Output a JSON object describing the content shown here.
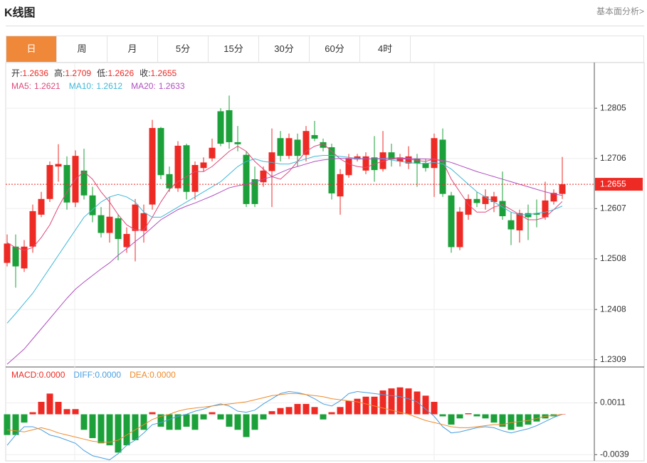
{
  "header": {
    "title": "K线图",
    "link": "基本面分析>"
  },
  "tabs": {
    "items": [
      "日",
      "周",
      "月",
      "5分",
      "15分",
      "30分",
      "60分",
      "4时"
    ],
    "active": 0
  },
  "chart_data": [
    {
      "type": "candlestick",
      "up_color": "#ee2a24",
      "down_color": "#1ba03a",
      "grid": true,
      "last_price_line": true,
      "ohlc_labels": [
        "开:",
        "高:",
        "低:",
        "收:"
      ],
      "open": [
        1.25,
        1.2532,
        1.2489,
        1.2532,
        1.2595,
        1.2626,
        1.269,
        1.2693,
        1.2619,
        1.2682,
        1.2633,
        1.2594,
        1.2559,
        1.2588,
        1.2531,
        1.2563,
        1.2563,
        1.2615,
        1.2766,
        1.2675,
        1.2647,
        1.2732,
        1.264,
        1.2687,
        1.2706,
        1.2799,
        1.2801,
        1.2738,
        1.2713,
        1.2665,
        1.2659,
        1.2681,
        1.2746,
        1.2711,
        1.2743,
        1.2713,
        1.2752,
        1.2738,
        1.2728,
        1.2631,
        1.2673,
        1.2704,
        1.2682,
        1.2708,
        1.2685,
        1.2718,
        1.27,
        1.2696,
        1.2706,
        1.2697,
        1.2687,
        1.2743,
        1.2633,
        1.2531,
        1.2595,
        1.2626,
        1.2616,
        1.262,
        1.2622,
        1.2584,
        1.2564,
        1.2598,
        1.2598,
        1.259,
        1.2621,
        1.2636
      ],
      "high": [
        1.2556,
        1.2556,
        1.2545,
        1.2615,
        1.264,
        1.27,
        1.2734,
        1.271,
        1.2722,
        1.2725,
        1.265,
        1.261,
        1.263,
        1.2596,
        1.257,
        1.2626,
        1.2615,
        1.2782,
        1.2768,
        1.269,
        1.274,
        1.2735,
        1.27,
        1.2708,
        1.2745,
        1.2805,
        1.283,
        1.277,
        1.272,
        1.269,
        1.269,
        1.2765,
        1.276,
        1.2755,
        1.2755,
        1.277,
        1.278,
        1.2745,
        1.2735,
        1.2685,
        1.2715,
        1.2715,
        1.2718,
        1.275,
        1.276,
        1.2735,
        1.2715,
        1.273,
        1.2715,
        1.2705,
        1.2755,
        1.2765,
        1.264,
        1.261,
        1.2635,
        1.264,
        1.2645,
        1.264,
        1.268,
        1.26,
        1.2605,
        1.2615,
        1.2625,
        1.266,
        1.2645,
        1.2709
      ],
      "low": [
        1.2493,
        1.2451,
        1.2482,
        1.252,
        1.259,
        1.262,
        1.266,
        1.2605,
        1.261,
        1.2625,
        1.258,
        1.255,
        1.254,
        1.2505,
        1.252,
        1.2503,
        1.254,
        1.2605,
        1.2665,
        1.264,
        1.264,
        1.2625,
        1.2625,
        1.268,
        1.27,
        1.273,
        1.2725,
        1.272,
        1.261,
        1.261,
        1.265,
        1.261,
        1.27,
        1.2705,
        1.269,
        1.27,
        1.274,
        1.272,
        1.2625,
        1.2595,
        1.2668,
        1.27,
        1.2675,
        1.266,
        1.268,
        1.269,
        1.269,
        1.2685,
        1.265,
        1.268,
        1.263,
        1.263,
        1.252,
        1.2525,
        1.2585,
        1.261,
        1.2605,
        1.26,
        1.2585,
        1.2535,
        1.254,
        1.2545,
        1.257,
        1.2585,
        1.2615,
        1.2626
      ],
      "close": [
        1.2538,
        1.2493,
        1.2532,
        1.2602,
        1.2626,
        1.2693,
        1.2695,
        1.2619,
        1.2711,
        1.2633,
        1.2594,
        1.2559,
        1.2591,
        1.2547,
        1.2557,
        1.2615,
        1.2598,
        1.2766,
        1.2673,
        1.2647,
        1.2731,
        1.264,
        1.2693,
        1.2698,
        1.2727,
        1.2735,
        1.2738,
        1.2734,
        1.2616,
        1.2616,
        1.2682,
        1.2718,
        1.2711,
        1.2746,
        1.2711,
        1.276,
        1.2745,
        1.2727,
        1.2637,
        1.2675,
        1.2706,
        1.271,
        1.271,
        1.2683,
        1.2718,
        1.2704,
        1.2708,
        1.271,
        1.2696,
        1.2687,
        1.2746,
        1.2636,
        1.2531,
        1.2601,
        1.2626,
        1.2618,
        1.2631,
        1.2631,
        1.2592,
        1.2566,
        1.2598,
        1.259,
        1.2595,
        1.2623,
        1.2638,
        1.2655
      ],
      "ma": [
        {
          "name": "MA5:",
          "color": "#e0487a",
          "values": [
            1.254,
            1.253,
            1.2525,
            1.253,
            1.255,
            1.2575,
            1.261,
            1.264,
            1.2665,
            1.268,
            1.2665,
            1.264,
            1.262,
            1.2595,
            1.2575,
            1.2565,
            1.2565,
            1.259,
            1.262,
            1.2645,
            1.266,
            1.267,
            1.268,
            1.268,
            1.269,
            1.2705,
            1.272,
            1.273,
            1.272,
            1.27,
            1.2685,
            1.267,
            1.2665,
            1.268,
            1.27,
            1.272,
            1.273,
            1.2735,
            1.272,
            1.2705,
            1.2695,
            1.269,
            1.2688,
            1.2695,
            1.27,
            1.2705,
            1.2705,
            1.2705,
            1.2702,
            1.27,
            1.2705,
            1.27,
            1.2665,
            1.264,
            1.2615,
            1.26,
            1.26,
            1.261,
            1.2615,
            1.2605,
            1.2595,
            1.2585,
            1.2585,
            1.259,
            1.2605,
            1.2621
          ]
        },
        {
          "name": "MA10:",
          "color": "#3fb8d8",
          "values": [
            1.2381,
            1.24,
            1.242,
            1.244,
            1.2465,
            1.249,
            1.2515,
            1.254,
            1.2565,
            1.259,
            1.2605,
            1.262,
            1.263,
            1.2635,
            1.263,
            1.262,
            1.26,
            1.259,
            1.259,
            1.26,
            1.261,
            1.262,
            1.263,
            1.264,
            1.265,
            1.266,
            1.2675,
            1.269,
            1.27,
            1.2705,
            1.27,
            1.2698,
            1.2695,
            1.2695,
            1.27,
            1.2705,
            1.271,
            1.2712,
            1.2712,
            1.271,
            1.2708,
            1.2706,
            1.2705,
            1.2705,
            1.2705,
            1.2703,
            1.27,
            1.2698,
            1.2696,
            1.2696,
            1.2698,
            1.2695,
            1.2685,
            1.267,
            1.2655,
            1.264,
            1.263,
            1.262,
            1.261,
            1.26,
            1.2595,
            1.2595,
            1.2598,
            1.26,
            1.2605,
            1.2612
          ]
        },
        {
          "name": "MA20:",
          "color": "#b04fc1",
          "values": [
            1.23,
            1.2315,
            1.233,
            1.235,
            1.237,
            1.239,
            1.241,
            1.243,
            1.2448,
            1.2462,
            1.2475,
            1.2488,
            1.25,
            1.2515,
            1.2528,
            1.2542,
            1.2555,
            1.257,
            1.2585,
            1.2595,
            1.2605,
            1.2612,
            1.2618,
            1.2625,
            1.2632,
            1.264,
            1.2648,
            1.2652,
            1.2655,
            1.266,
            1.2665,
            1.267,
            1.2678,
            1.2685,
            1.269,
            1.2695,
            1.27,
            1.2703,
            1.2705,
            1.2706,
            1.2706,
            1.2705,
            1.2705,
            1.2705,
            1.2706,
            1.2707,
            1.2707,
            1.2706,
            1.2705,
            1.2705,
            1.2704,
            1.2702,
            1.2698,
            1.2692,
            1.2686,
            1.268,
            1.2675,
            1.267,
            1.2665,
            1.266,
            1.2655,
            1.265,
            1.2645,
            1.264,
            1.2636,
            1.2633
          ]
        }
      ],
      "ylim": [
        1.2296,
        1.2895
      ],
      "yticks": [
        1.2309,
        1.2408,
        1.2508,
        1.2607,
        1.2706,
        1.2805
      ]
    },
    {
      "type": "macd",
      "up_color": "#ee2a24",
      "down_color": "#1ba03a",
      "grid": true,
      "series": [
        {
          "name": "MACD:",
          "color": "#ee2a24",
          "value_label": "0.0000",
          "values": [
            -0.002,
            -0.002,
            -0.0008,
            0.0002,
            0.0012,
            0.002,
            0.0012,
            0.0005,
            0.0005,
            -0.0015,
            -0.0023,
            -0.0028,
            -0.003,
            -0.0037,
            -0.003,
            -0.0025,
            -0.0015,
            0.0002,
            -0.0012,
            -0.0015,
            -0.0015,
            -0.0012,
            -0.0015,
            -0.0005,
            0.0002,
            -0.0005,
            -0.0012,
            -0.0015,
            -0.0022,
            -0.0015,
            -0.0005,
            0.0003,
            0.0006,
            0.0007,
            0.001,
            0.001,
            0.0007,
            -0.0005,
            0.0002,
            0.0007,
            0.0013,
            0.0015,
            0.0017,
            0.0017,
            0.0023,
            0.0025,
            0.0026,
            0.0025,
            0.0022,
            0.0018,
            0.0012,
            -0.0002,
            -0.001,
            -0.0004,
            0.0001,
            -0.0002,
            -0.0004,
            -0.0008,
            -0.0012,
            -0.0015,
            -0.0012,
            -0.001,
            -0.0007,
            -0.0004,
            -0.0002,
            0
          ]
        },
        {
          "name": "DIFF:",
          "color": "#4a9fe0",
          "value_label": "0.0000",
          "values": [
            -0.003,
            -0.002,
            -0.0012,
            -0.0012,
            -0.0015,
            -0.002,
            -0.0022,
            -0.0025,
            -0.0028,
            -0.0035,
            -0.004,
            -0.0042,
            -0.0044,
            -0.0038,
            -0.003,
            -0.0025,
            -0.0018,
            -0.001,
            -0.0008,
            -0.0005,
            -0.0002,
            0,
            0.0003,
            0.0005,
            0.0008,
            0.001,
            0.0008,
            0.0003,
            0.0002,
            0.0004,
            0.001,
            0.0015,
            0.002,
            0.0022,
            0.0021,
            0.0019,
            0.0015,
            0.001,
            0.0008,
            0.0013,
            0.002,
            0.0022,
            0.0021,
            0.002,
            0.0019,
            0.0018,
            0.0017,
            0.0015,
            0.0012,
            0.0005,
            -0.0002,
            -0.0012,
            -0.0018,
            -0.0017,
            -0.0015,
            -0.0013,
            -0.0012,
            -0.0013,
            -0.0016,
            -0.0018,
            -0.0016,
            -0.0014,
            -0.0011,
            -0.0007,
            -0.0003,
            0
          ]
        },
        {
          "name": "DEA:",
          "color": "#f08a2a",
          "value_label": "0.0000",
          "values": [
            -0.0015,
            -0.0016,
            -0.0017,
            -0.0015,
            -0.0013,
            -0.0015,
            -0.0018,
            -0.002,
            -0.0022,
            -0.0024,
            -0.0026,
            -0.0027,
            -0.0027,
            -0.0025,
            -0.002,
            -0.0015,
            -0.001,
            -0.0005,
            -0.0002,
            0,
            0.0003,
            0.0005,
            0.0006,
            0.0007,
            0.0008,
            0.0009,
            0.001,
            0.0011,
            0.0012,
            0.0014,
            0.0016,
            0.0018,
            0.0019,
            0.002,
            0.002,
            0.0019,
            0.0018,
            0.0017,
            0.0015,
            0.0014,
            0.0013,
            0.0012,
            0.001,
            0.0008,
            0.0006,
            0.0004,
            0.0002,
            0,
            -0.0003,
            -0.0006,
            -0.0008,
            -0.001,
            -0.0012,
            -0.0013,
            -0.0013,
            -0.0012,
            -0.0011,
            -0.001,
            -0.001,
            -0.0008,
            -0.0007,
            -0.0006,
            -0.0004,
            -0.0002,
            -0.0001,
            0
          ]
        }
      ],
      "ylim": [
        -0.0045,
        0.0045
      ],
      "yticks": [
        -0.0039,
        0.0011
      ]
    }
  ]
}
